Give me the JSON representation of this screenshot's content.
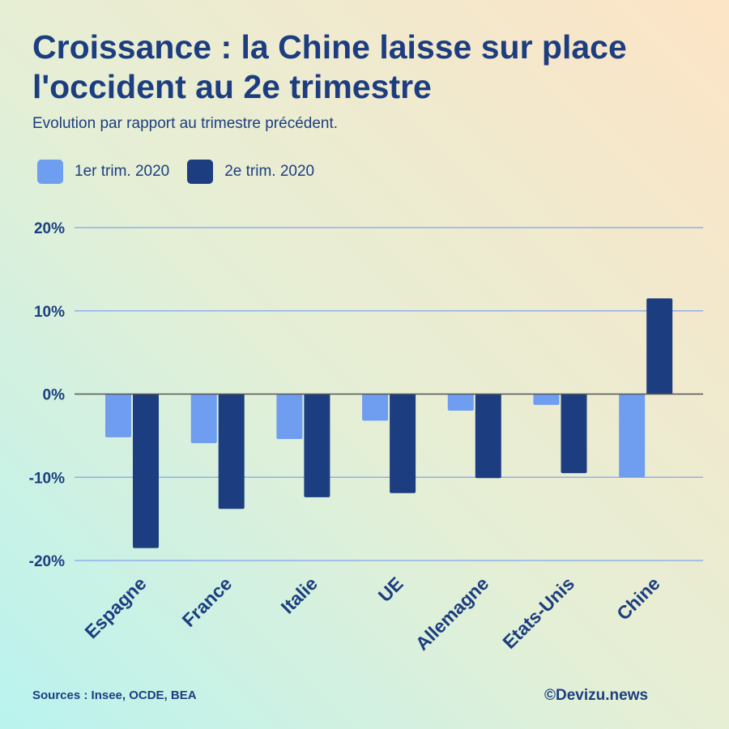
{
  "header": {
    "title": "Croissance : la Chine laisse sur place l'occident au 2e trimestre",
    "subtitle": "Evolution par rapport au trimestre précédent."
  },
  "footer": {
    "sources": "Sources : Insee, OCDE, BEA",
    "credit": "©Devizu.news"
  },
  "colors": {
    "series1": "#6f9ef0",
    "series2": "#1c3e80",
    "text": "#1c3e80",
    "grid": "#8fb0ec",
    "zero_line": "#555555"
  },
  "chart_data": {
    "type": "bar",
    "title": "Croissance : la Chine laisse sur place l'occident au 2e trimestre",
    "subtitle": "Evolution par rapport au trimestre précédent.",
    "categories": [
      "Espagne",
      "France",
      "Italie",
      "UE",
      "Allemagne",
      "Etats-Unis",
      "Chine"
    ],
    "series": [
      {
        "name": "1er trim. 2020",
        "values": [
          -5.2,
          -5.9,
          -5.4,
          -3.2,
          -2.0,
          -1.3,
          -10.0
        ]
      },
      {
        "name": "2e trim. 2020",
        "values": [
          -18.5,
          -13.8,
          -12.4,
          -11.9,
          -10.1,
          -9.5,
          11.5
        ]
      }
    ],
    "yticks": [
      20,
      10,
      0,
      -10,
      -20
    ],
    "ytick_labels": [
      "20%",
      "10%",
      "0%",
      "-10%",
      "-20%"
    ],
    "ylim": [
      -20,
      20
    ],
    "xlabel": "",
    "ylabel": "",
    "legend_position": "top-left",
    "grid": true
  }
}
